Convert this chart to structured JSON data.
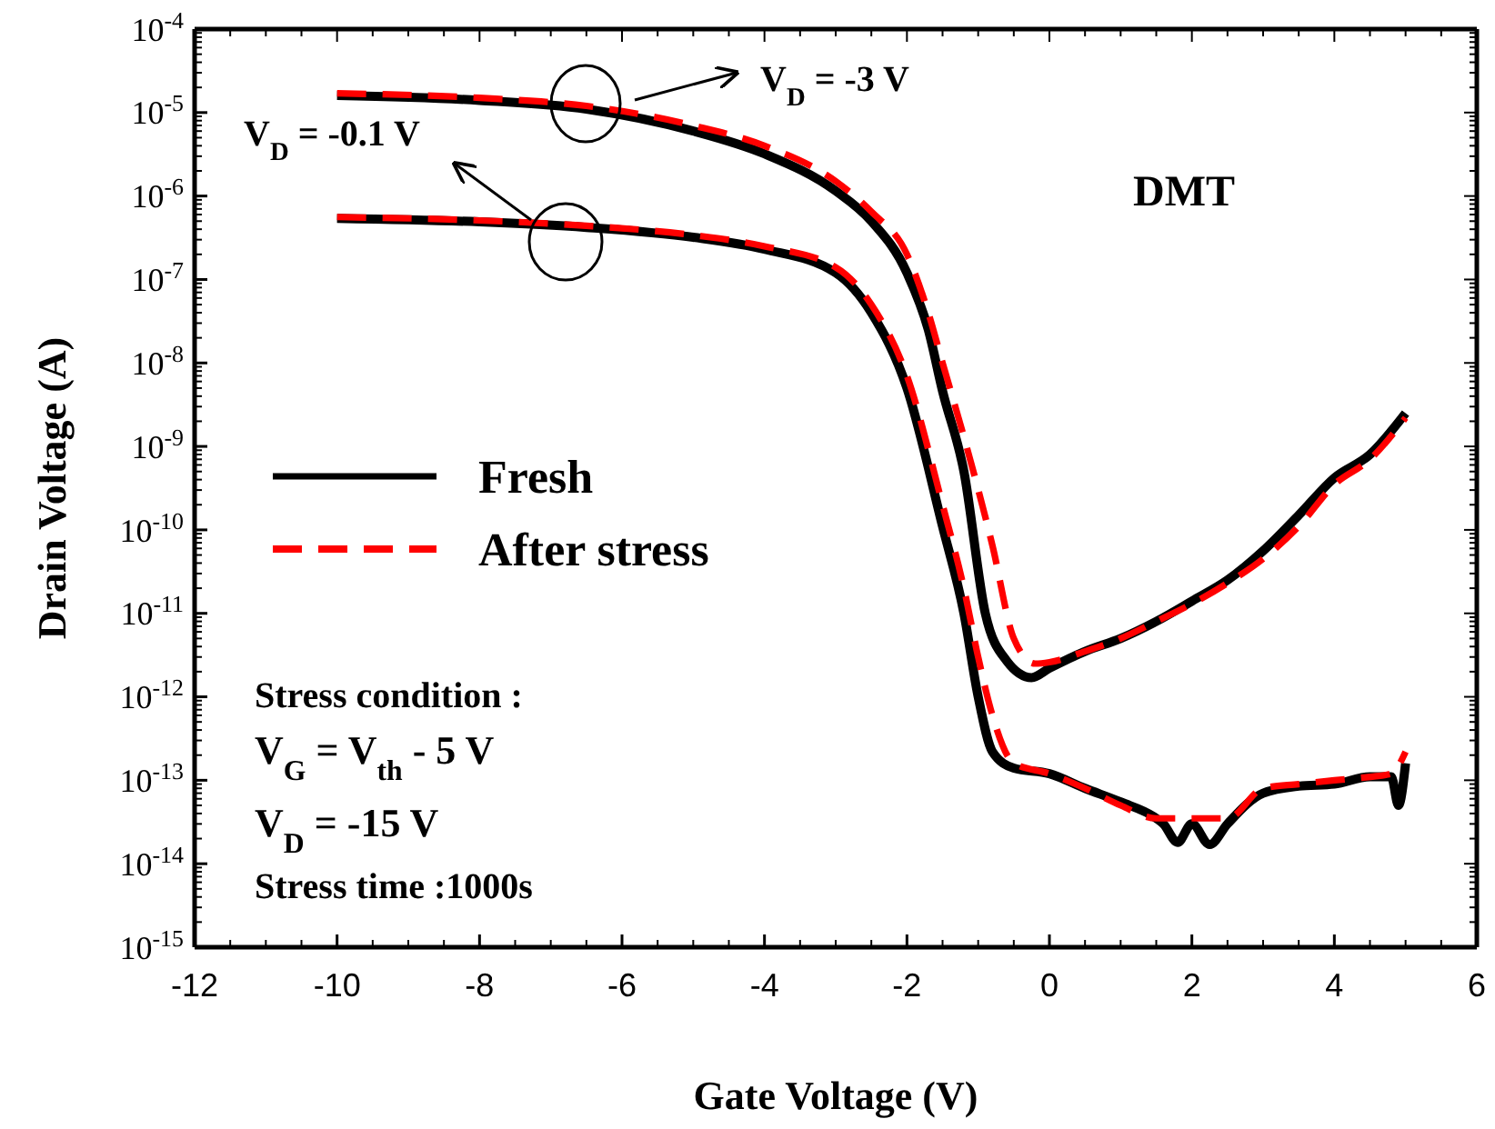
{
  "chart_data": {
    "type": "line",
    "xlabel": "Gate Voltage (V)",
    "ylabel": "Drain Voltage (A)",
    "log": "y",
    "xlim": [
      -12,
      6
    ],
    "xticks": [
      -12,
      -10,
      -8,
      -6,
      -4,
      -2,
      0,
      2,
      4,
      6
    ],
    "ylim": [
      1e-15,
      0.0001
    ],
    "yticks": [
      {
        "value": 0.0001,
        "label": "10$^{-4}$"
      },
      {
        "value": 1e-05,
        "label": "10$^{-5}$"
      },
      {
        "value": 1e-06,
        "label": "10$^{-6}$"
      },
      {
        "value": 1e-07,
        "label": "10$^{-7}$"
      },
      {
        "value": 1e-08,
        "label": "10$^{-8}$"
      },
      {
        "value": 1e-09,
        "label": "10$^{-9}$"
      },
      {
        "value": 1e-10,
        "label": "10$^{-10}$"
      },
      {
        "value": 1e-11,
        "label": "10$^{-11}$"
      },
      {
        "value": 1e-12,
        "label": "10$^{-12}$"
      },
      {
        "value": 1e-13,
        "label": "10$^{-13}$"
      },
      {
        "value": 1e-14,
        "label": "10$^{-14}$"
      },
      {
        "value": 1e-15,
        "label": "10$^{-15}$"
      }
    ],
    "grid": false,
    "legend": "left",
    "marker": "none",
    "series": [
      {
        "name": "Fresh",
        "color": "#000000",
        "line_style": "solid",
        "x": [
          -10,
          -8,
          -6.5,
          -5,
          -4,
          -3,
          -2.5,
          -2,
          -1.7,
          -1.5,
          -1.2,
          -0.9,
          -0.6,
          -0.25,
          0,
          0.5,
          1,
          1.5,
          2,
          2.5,
          3,
          3.5,
          4,
          4.5,
          5
        ],
        "values": [
          1.6e-05,
          1.4e-05,
          1.1e-05,
          6e-06,
          3.2e-06,
          1.15e-06,
          5e-07,
          1.2e-07,
          2.5e-08,
          4.6e-09,
          5e-10,
          1e-11,
          2.7e-12,
          1.7e-12,
          2.2e-12,
          3.5e-12,
          5e-12,
          8e-12,
          1.4e-11,
          2.5e-11,
          5.6e-11,
          1.5e-10,
          4.2e-10,
          8e-10,
          2.5e-09
        ]
      },
      {
        "name": "After stress",
        "color": "#ff0000",
        "line_style": "dashed",
        "x": [
          -10,
          -8,
          -6.5,
          -5,
          -4,
          -3,
          -2.5,
          -2,
          -1.7,
          -1.5,
          -1.2,
          -0.8,
          -0.5,
          -0.2,
          0,
          0.5,
          1,
          1.5,
          2,
          2.5,
          3,
          3.5,
          4,
          4.5,
          5
        ],
        "values": [
          1.7e-05,
          1.5e-05,
          1.2e-05,
          7e-06,
          4e-06,
          1.5e-06,
          6.5e-07,
          2e-07,
          4e-08,
          1e-08,
          1.3e-09,
          6.5e-11,
          5e-12,
          2.5e-12,
          2.6e-12,
          3.5e-12,
          5e-12,
          8e-12,
          1.3e-11,
          2.3e-11,
          4.5e-11,
          1.1e-10,
          3.5e-10,
          7e-10,
          2.2e-09
        ]
      },
      {
        "color": "#000000",
        "line_style": "solid",
        "x": [
          -10,
          -8,
          -6.5,
          -5,
          -4,
          -3,
          -2.5,
          -2,
          -1.5,
          -1.2,
          -1,
          -0.8,
          -0.5,
          0,
          0.5,
          1,
          1.5,
          1.6,
          1.8,
          2,
          2.25,
          2.5,
          3,
          3.5,
          4,
          4.5,
          4.8,
          4.9,
          5
        ],
        "values": [
          5.4e-07,
          4.9e-07,
          4.2e-07,
          3.2e-07,
          2.3e-07,
          1.2e-07,
          4e-08,
          5e-09,
          1.1e-10,
          1e-11,
          1e-12,
          2.2e-13,
          1.4e-13,
          1.2e-13,
          8e-14,
          5.5e-14,
          3.5e-14,
          3e-14,
          1.8e-14,
          3e-14,
          1.7e-14,
          3e-14,
          7e-14,
          8.5e-14,
          9e-14,
          1.1e-13,
          1.1e-13,
          5e-14,
          1.6e-13
        ]
      },
      {
        "color": "#ff0000",
        "line_style": "dashed",
        "x": [
          -10,
          -8,
          -6.5,
          -5,
          -4,
          -3,
          -2.5,
          -2,
          -1.5,
          -1.2,
          -1,
          -0.8,
          -0.5,
          0,
          0.5,
          1,
          1.5,
          2,
          2.5,
          3,
          3.5,
          4,
          4.5,
          4.8,
          5
        ],
        "values": [
          5.6e-07,
          5.1e-07,
          4.4e-07,
          3.4e-07,
          2.5e-07,
          1.4e-07,
          5e-08,
          7e-09,
          2e-10,
          2e-11,
          3e-12,
          6e-13,
          1.6e-13,
          1.2e-13,
          8e-14,
          5e-14,
          3.5e-14,
          3.5e-14,
          3.5e-14,
          8e-14,
          9e-14,
          1e-13,
          1.1e-13,
          1.2e-13,
          2.2e-13
        ]
      }
    ],
    "annotations": [
      "V$_{D}$ = -3 V",
      "V$_{D}$ = -0.1 V",
      "DMT",
      "Stress condition :",
      "V$_{G}$ = V$_{th}$ - 5 V",
      "V$_{D}$ = -15 V",
      "Stress time :1000s"
    ]
  }
}
